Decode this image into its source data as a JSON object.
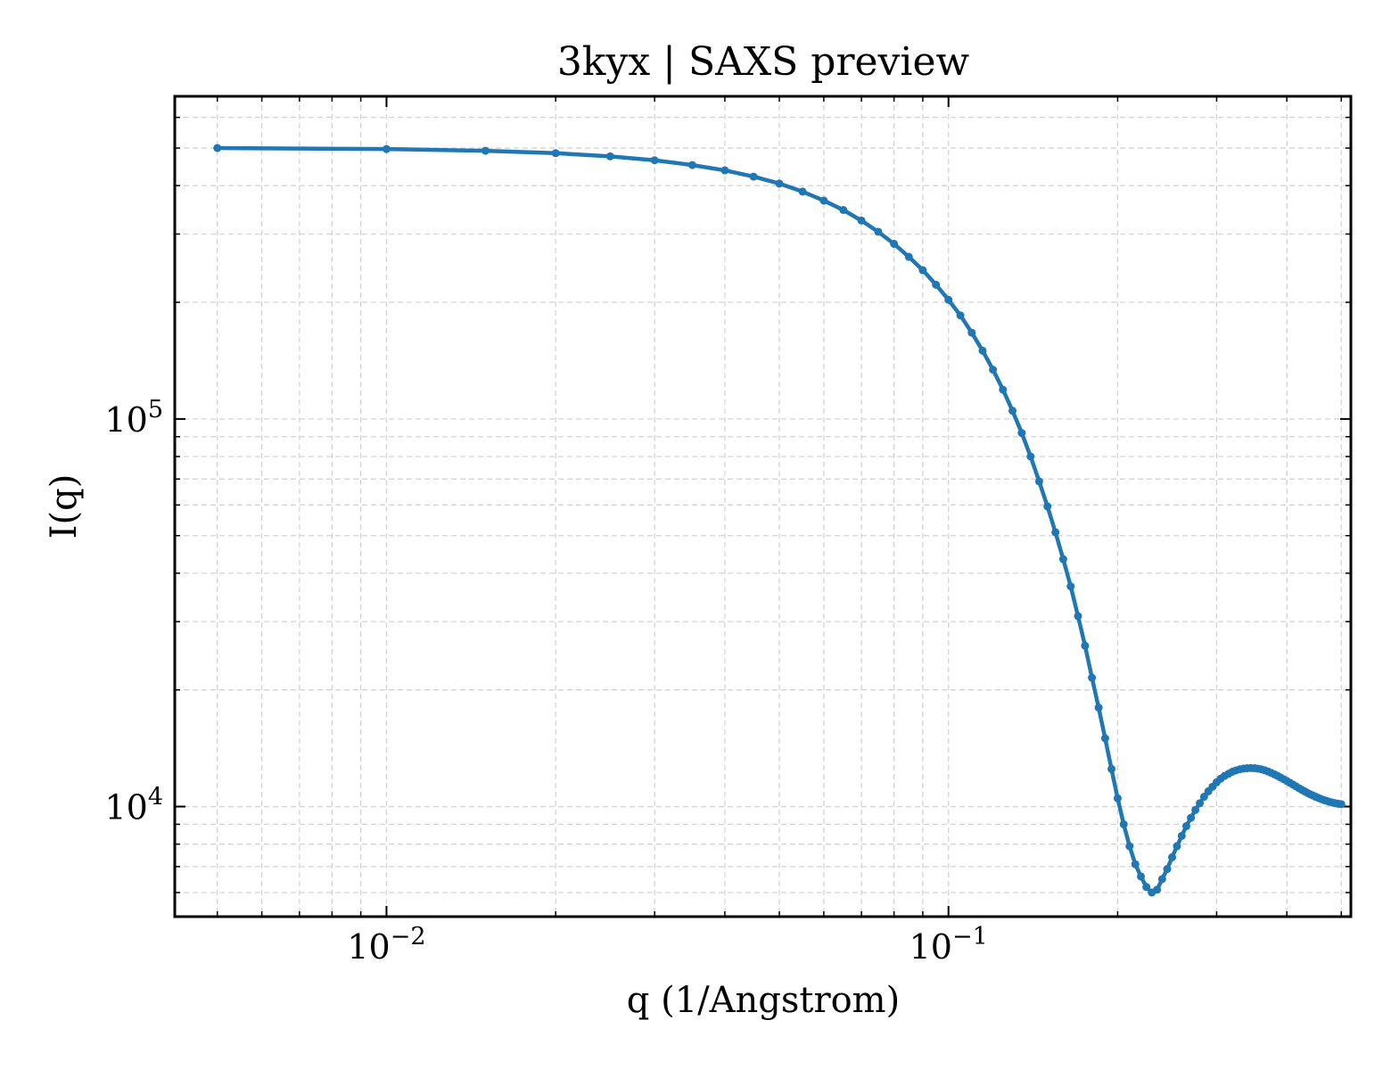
{
  "chart_data": {
    "type": "line",
    "title": "3kyx | SAXS preview",
    "xlabel": "q (1/Angstrom)",
    "ylabel": "I(q)",
    "xscale": "log",
    "yscale": "log",
    "xlim": [
      0.0042,
      0.52
    ],
    "ylim": [
      5200,
      680000
    ],
    "grid": true,
    "legend": "none",
    "line_color": "#1f77b4",
    "x_ticks": [
      {
        "value": 0.01,
        "base": "10",
        "exp": "−2"
      },
      {
        "value": 0.1,
        "base": "10",
        "exp": "−1"
      }
    ],
    "y_ticks": [
      {
        "value": 10000,
        "base": "10",
        "exp": "4"
      },
      {
        "value": 100000,
        "base": "10",
        "exp": "5"
      }
    ],
    "series": [
      {
        "x": [
          0.005,
          0.01,
          0.015,
          0.02,
          0.025,
          0.03,
          0.035,
          0.04,
          0.045,
          0.05,
          0.055,
          0.06,
          0.065,
          0.07,
          0.075,
          0.08,
          0.085,
          0.09,
          0.095,
          0.1,
          0.105,
          0.11,
          0.115,
          0.12,
          0.125,
          0.13,
          0.135,
          0.14,
          0.145,
          0.15,
          0.155,
          0.16,
          0.165,
          0.17,
          0.175,
          0.18,
          0.185,
          0.19,
          0.195,
          0.2,
          0.205,
          0.21,
          0.215,
          0.22,
          0.225,
          0.23,
          0.235,
          0.24,
          0.245,
          0.25,
          0.255,
          0.26,
          0.265,
          0.27,
          0.275,
          0.28,
          0.285,
          0.29,
          0.295,
          0.3,
          0.305,
          0.31,
          0.315,
          0.32,
          0.325,
          0.33,
          0.335,
          0.34,
          0.345,
          0.35,
          0.355,
          0.36,
          0.365,
          0.37,
          0.375,
          0.38,
          0.385,
          0.39,
          0.395,
          0.4,
          0.405,
          0.41,
          0.415,
          0.42,
          0.425,
          0.43,
          0.435,
          0.44,
          0.445,
          0.45,
          0.455,
          0.46,
          0.465,
          0.47,
          0.475,
          0.48,
          0.485,
          0.49,
          0.495,
          0.5
        ],
        "y": [
          500000,
          497000,
          492000,
          485000,
          476000,
          465000,
          452000,
          438000,
          422000,
          405000,
          386000,
          366000,
          346000,
          325000,
          304000,
          283000,
          262000,
          242000,
          222000,
          203000,
          185000,
          167000,
          150000,
          134000,
          119000,
          105000,
          92000,
          80000,
          69000,
          59500,
          51000,
          43500,
          37000,
          31000,
          26000,
          21500,
          18000,
          15000,
          12500,
          10500,
          9000,
          7900,
          7100,
          6600,
          6200,
          6000,
          6100,
          6500,
          6900,
          7400,
          7900,
          8400,
          8900,
          9350,
          9800,
          10200,
          10600,
          10950,
          11250,
          11550,
          11800,
          12000,
          12150,
          12300,
          12400,
          12480,
          12530,
          12560,
          12570,
          12560,
          12530,
          12480,
          12410,
          12320,
          12220,
          12110,
          12000,
          11880,
          11760,
          11640,
          11520,
          11400,
          11280,
          11160,
          11050,
          10950,
          10850,
          10760,
          10680,
          10600,
          10530,
          10460,
          10400,
          10350,
          10300,
          10260,
          10220,
          10190,
          10160,
          10140
        ]
      }
    ]
  }
}
